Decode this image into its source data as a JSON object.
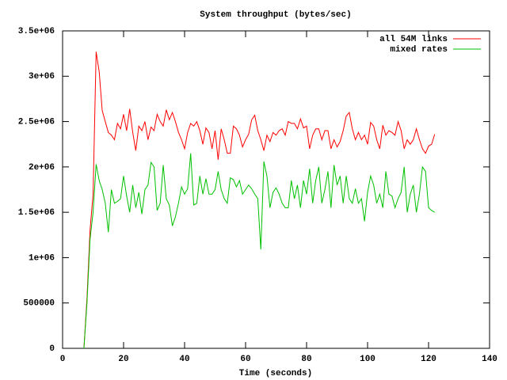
{
  "chart_data": {
    "type": "line",
    "title": "System throughput (bytes/sec)",
    "xlabel": "Time (seconds)",
    "x": [
      7,
      8,
      9,
      10,
      11,
      12,
      13,
      14,
      15,
      16,
      17,
      18,
      19,
      20,
      21,
      22,
      23,
      24,
      25,
      26,
      27,
      28,
      29,
      30,
      31,
      32,
      33,
      34,
      35,
      36,
      37,
      38,
      39,
      40,
      41,
      42,
      43,
      44,
      45,
      46,
      47,
      48,
      49,
      50,
      51,
      52,
      53,
      54,
      55,
      56,
      57,
      58,
      59,
      60,
      61,
      62,
      63,
      64,
      65,
      66,
      67,
      68,
      69,
      70,
      71,
      72,
      73,
      74,
      75,
      76,
      77,
      78,
      79,
      80,
      81,
      82,
      83,
      84,
      85,
      86,
      87,
      88,
      89,
      90,
      91,
      92,
      93,
      94,
      95,
      96,
      97,
      98,
      99,
      100,
      101,
      102,
      103,
      104,
      105,
      106,
      107,
      108,
      109,
      110,
      111,
      112,
      113,
      114,
      115,
      116,
      117,
      118,
      119,
      120,
      121,
      122
    ],
    "series": [
      {
        "name": "all 54M links",
        "color": "#ff0000",
        "values": [
          0,
          550000,
          1300000,
          1700000,
          3270000,
          3050000,
          2620000,
          2500000,
          2380000,
          2350000,
          2300000,
          2480000,
          2420000,
          2580000,
          2400000,
          2640000,
          2380000,
          2180000,
          2450000,
          2400000,
          2500000,
          2300000,
          2440000,
          2400000,
          2580000,
          2500000,
          2450000,
          2630000,
          2520000,
          2600000,
          2500000,
          2380000,
          2300000,
          2200000,
          2380000,
          2480000,
          2450000,
          2500000,
          2400000,
          2250000,
          2430000,
          2380000,
          2200000,
          2400000,
          2080000,
          2420000,
          2300000,
          2150000,
          2150000,
          2450000,
          2420000,
          2350000,
          2220000,
          2300000,
          2360000,
          2520000,
          2570000,
          2400000,
          2300000,
          2180000,
          2350000,
          2280000,
          2380000,
          2350000,
          2400000,
          2420000,
          2350000,
          2500000,
          2480000,
          2480000,
          2420000,
          2530000,
          2430000,
          2450000,
          2200000,
          2350000,
          2420000,
          2420000,
          2300000,
          2400000,
          2400000,
          2200000,
          2300000,
          2220000,
          2280000,
          2400000,
          2560000,
          2600000,
          2420000,
          2300000,
          2380000,
          2300000,
          2350000,
          2250000,
          2490000,
          2450000,
          2300000,
          2200000,
          2460000,
          2350000,
          2400000,
          2380000,
          2350000,
          2500000,
          2400000,
          2200000,
          2300000,
          2250000,
          2300000,
          2420000,
          2300000,
          2200000,
          2150000,
          2230000,
          2250000,
          2360000
        ]
      },
      {
        "name": "mixed rates",
        "color": "#00c000",
        "values": [
          0,
          500000,
          1200000,
          1500000,
          2030000,
          1850000,
          1750000,
          1600000,
          1280000,
          1750000,
          1600000,
          1620000,
          1650000,
          1900000,
          1680000,
          1500000,
          1800000,
          1550000,
          1720000,
          1480000,
          1750000,
          1800000,
          2050000,
          2000000,
          1520000,
          1600000,
          2020000,
          1650000,
          1580000,
          1350000,
          1450000,
          1600000,
          1780000,
          1700000,
          1760000,
          2150000,
          1580000,
          1600000,
          1900000,
          1700000,
          1870000,
          1700000,
          1700000,
          1750000,
          1950000,
          1750000,
          1650000,
          1600000,
          1880000,
          1860000,
          1780000,
          1850000,
          1700000,
          1750000,
          1800000,
          1760000,
          1700000,
          1650000,
          1090000,
          2060000,
          1900000,
          1550000,
          1720000,
          1770000,
          1700000,
          1600000,
          1550000,
          1550000,
          1850000,
          1650000,
          1800000,
          1550000,
          1850000,
          1700000,
          1980000,
          1600000,
          1850000,
          2000000,
          1600000,
          1750000,
          1950000,
          1550000,
          2020000,
          1800000,
          1900000,
          1600000,
          1900000,
          1650000,
          1600000,
          1760000,
          1600000,
          1650000,
          1400000,
          1720000,
          1900000,
          1800000,
          1600000,
          1700000,
          1550000,
          1950000,
          1700000,
          1680000,
          1550000,
          1650000,
          1720000,
          2000000,
          1500000,
          1700000,
          1800000,
          1500000,
          1700000,
          2000000,
          1950000,
          1550000,
          1520000,
          1500000
        ]
      }
    ],
    "xlim": [
      0,
      140
    ],
    "xticks": [
      0,
      20,
      40,
      60,
      80,
      100,
      120,
      140
    ],
    "ylim": [
      0,
      3500000
    ],
    "yticks": [
      0,
      500000,
      {
        "value": 1000000,
        "label": "1e+06"
      },
      {
        "value": 1500000,
        "label": "1.5e+06"
      },
      {
        "value": 2000000,
        "label": "2e+06"
      },
      {
        "value": 2500000,
        "label": "2.5e+06"
      },
      {
        "value": 3000000,
        "label": "3e+06"
      },
      {
        "value": 3500000,
        "label": "3.5e+06"
      }
    ],
    "legend": "top-right"
  }
}
